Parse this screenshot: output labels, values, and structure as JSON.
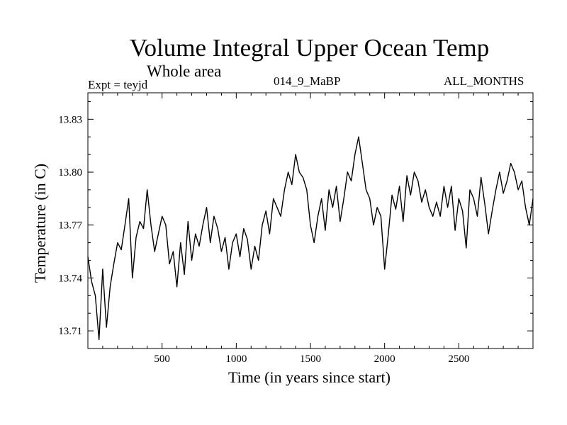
{
  "chart_data": {
    "type": "line",
    "title": "Volume Integral Upper Ocean Temp",
    "subtitle": "Whole area",
    "annotations": {
      "left": "Expt = teyjd",
      "center": "014_9_MaBP",
      "right": "ALL_MONTHS"
    },
    "xlabel": "Time (in years since start)",
    "ylabel": "Temperature (in C)",
    "xlim": [
      0,
      3000
    ],
    "ylim": [
      13.7,
      13.845
    ],
    "x_ticks": [
      500,
      1000,
      1500,
      2000,
      2500
    ],
    "x_tick_labels": [
      "500",
      "1000",
      "1500",
      "2000",
      "2500"
    ],
    "y_ticks": [
      13.71,
      13.74,
      13.77,
      13.8,
      13.83
    ],
    "y_tick_labels": [
      "13.71",
      "13.74",
      "13.77",
      "13.80",
      "13.83"
    ],
    "grid": false,
    "series": [
      {
        "name": "teyjd",
        "x": [
          0,
          25,
          50,
          75,
          100,
          125,
          150,
          175,
          200,
          225,
          250,
          275,
          300,
          325,
          350,
          375,
          400,
          425,
          450,
          475,
          500,
          525,
          550,
          575,
          600,
          625,
          650,
          675,
          700,
          725,
          750,
          775,
          800,
          825,
          850,
          875,
          900,
          925,
          950,
          975,
          1000,
          1025,
          1050,
          1075,
          1100,
          1125,
          1150,
          1175,
          1200,
          1225,
          1250,
          1275,
          1300,
          1325,
          1350,
          1375,
          1400,
          1425,
          1450,
          1475,
          1500,
          1525,
          1550,
          1575,
          1600,
          1625,
          1650,
          1675,
          1700,
          1725,
          1750,
          1775,
          1800,
          1825,
          1850,
          1875,
          1900,
          1925,
          1950,
          1975,
          2000,
          2025,
          2050,
          2075,
          2100,
          2125,
          2150,
          2175,
          2200,
          2225,
          2250,
          2275,
          2300,
          2325,
          2350,
          2375,
          2400,
          2425,
          2450,
          2475,
          2500,
          2525,
          2550,
          2575,
          2600,
          2625,
          2650,
          2675,
          2700,
          2725,
          2750,
          2775,
          2800,
          2825,
          2850,
          2875,
          2900,
          2925,
          2950,
          2975,
          3000
        ],
        "values": [
          13.752,
          13.738,
          13.73,
          13.705,
          13.745,
          13.712,
          13.735,
          13.748,
          13.76,
          13.756,
          13.77,
          13.785,
          13.74,
          13.763,
          13.772,
          13.768,
          13.79,
          13.77,
          13.755,
          13.765,
          13.775,
          13.77,
          13.748,
          13.755,
          13.735,
          13.76,
          13.742,
          13.772,
          13.75,
          13.765,
          13.758,
          13.77,
          13.78,
          13.76,
          13.775,
          13.768,
          13.755,
          13.763,
          13.745,
          13.76,
          13.765,
          13.752,
          13.768,
          13.762,
          13.745,
          13.758,
          13.75,
          13.77,
          13.778,
          13.765,
          13.785,
          13.78,
          13.775,
          13.79,
          13.8,
          13.793,
          13.81,
          13.8,
          13.797,
          13.79,
          13.77,
          13.76,
          13.775,
          13.785,
          13.767,
          13.79,
          13.78,
          13.792,
          13.772,
          13.785,
          13.8,
          13.795,
          13.81,
          13.82,
          13.805,
          13.79,
          13.785,
          13.77,
          13.78,
          13.775,
          13.745,
          13.765,
          13.787,
          13.779,
          13.792,
          13.772,
          13.798,
          13.787,
          13.8,
          13.795,
          13.783,
          13.79,
          13.78,
          13.775,
          13.783,
          13.775,
          13.792,
          13.78,
          13.792,
          13.767,
          13.785,
          13.778,
          13.757,
          13.79,
          13.785,
          13.775,
          13.797,
          13.782,
          13.765,
          13.778,
          13.79,
          13.8,
          13.788,
          13.795,
          13.805,
          13.8,
          13.79,
          13.795,
          13.78,
          13.77,
          13.785
        ]
      }
    ]
  }
}
